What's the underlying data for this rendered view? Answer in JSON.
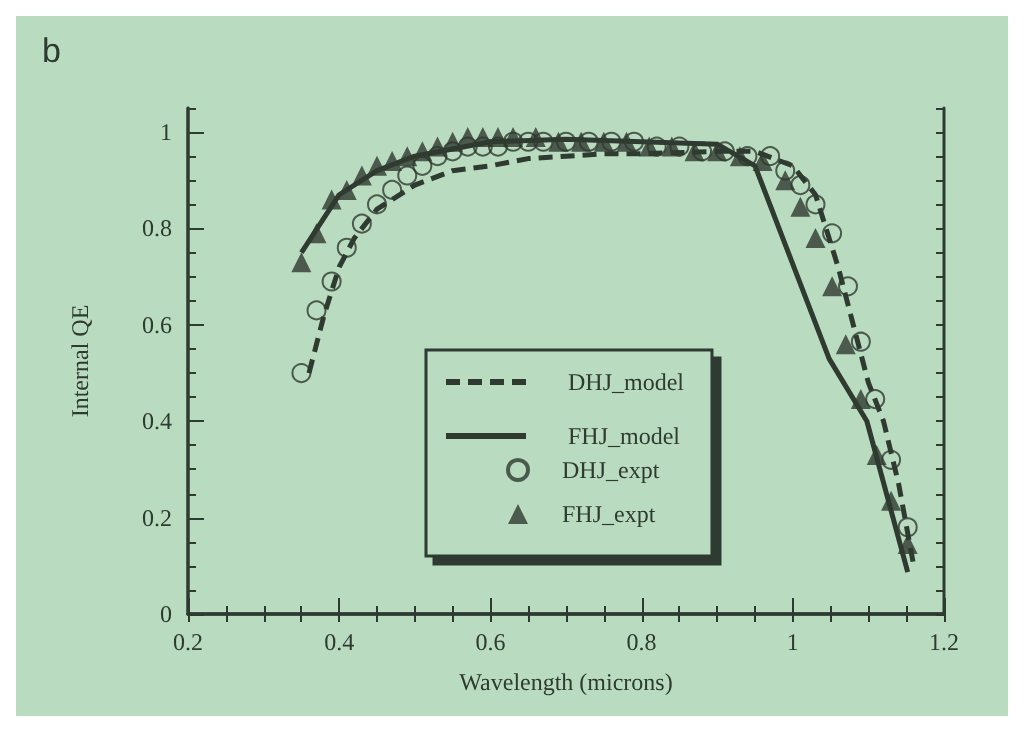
{
  "chart_data": {
    "type": "line",
    "title": "b",
    "xlabel": "Wavelength (microns)",
    "ylabel": "Internal QE",
    "xlim": [
      0.2,
      1.2
    ],
    "xticks": [
      0.2,
      0.4,
      0.6,
      0.8,
      1,
      1.2
    ],
    "ylim": [
      0,
      1.05
    ],
    "yticks": [
      0,
      0.2,
      0.4,
      0.6,
      0.8,
      1
    ],
    "grid": false,
    "legend": "bottom",
    "series": [
      {
        "name": "DHJ_model",
        "color": "#2f3a30",
        "line_style": "dashed",
        "marker": "none",
        "x": [
          0.36,
          0.38,
          0.4,
          0.42,
          0.45,
          0.5,
          0.55,
          0.6,
          0.65,
          0.7,
          0.75,
          0.8,
          0.9,
          0.95,
          1.0,
          1.03,
          1.06,
          1.08,
          1.1,
          1.12,
          1.14,
          1.16
        ],
        "values": [
          0.5,
          0.62,
          0.72,
          0.78,
          0.84,
          0.89,
          0.92,
          0.93,
          0.945,
          0.95,
          0.955,
          0.955,
          0.96,
          0.96,
          0.93,
          0.87,
          0.72,
          0.6,
          0.48,
          0.4,
          0.27,
          0.1
        ]
      },
      {
        "name": "FHJ_model",
        "color": "#2f3a30",
        "line_style": "solid",
        "marker": "none",
        "x": [
          0.35,
          0.4,
          0.45,
          0.5,
          0.6,
          0.7,
          0.8,
          0.9,
          0.95,
          1.048,
          1.098,
          1.152
        ],
        "values": [
          0.75,
          0.87,
          0.92,
          0.95,
          0.98,
          0.985,
          0.98,
          0.975,
          0.93,
          0.53,
          0.4,
          0.087
        ]
      },
      {
        "name": "DHJ_expt",
        "color": "#2f3a30",
        "type": "scatter",
        "marker": "circle",
        "x": [
          0.35,
          0.37,
          0.39,
          0.41,
          0.43,
          0.45,
          0.47,
          0.49,
          0.51,
          0.53,
          0.55,
          0.57,
          0.59,
          0.61,
          0.63,
          0.65,
          0.67,
          0.7,
          0.73,
          0.76,
          0.79,
          0.82,
          0.85,
          0.88,
          0.91,
          0.94,
          0.97,
          0.99,
          1.01,
          1.03,
          1.052,
          1.073,
          1.09,
          1.109,
          1.13,
          1.152
        ],
        "values": [
          0.5,
          0.63,
          0.69,
          0.76,
          0.81,
          0.85,
          0.88,
          0.91,
          0.93,
          0.95,
          0.96,
          0.97,
          0.97,
          0.97,
          0.98,
          0.98,
          0.98,
          0.98,
          0.98,
          0.98,
          0.98,
          0.97,
          0.97,
          0.96,
          0.96,
          0.95,
          0.95,
          0.92,
          0.89,
          0.85,
          0.79,
          0.68,
          0.565,
          0.446,
          0.32,
          0.18
        ]
      },
      {
        "name": "FHJ_expt",
        "color": "#2f3a30",
        "type": "scatter",
        "marker": "triangle",
        "x": [
          0.35,
          0.37,
          0.39,
          0.41,
          0.43,
          0.45,
          0.47,
          0.49,
          0.51,
          0.53,
          0.55,
          0.57,
          0.59,
          0.61,
          0.63,
          0.66,
          0.69,
          0.72,
          0.75,
          0.78,
          0.81,
          0.84,
          0.87,
          0.9,
          0.93,
          0.96,
          0.99,
          1.01,
          1.03,
          1.052,
          1.07,
          1.09,
          1.111,
          1.13,
          1.152
        ],
        "values": [
          0.73,
          0.79,
          0.86,
          0.88,
          0.91,
          0.93,
          0.94,
          0.95,
          0.96,
          0.97,
          0.98,
          0.99,
          0.99,
          0.99,
          0.99,
          0.99,
          0.98,
          0.98,
          0.98,
          0.98,
          0.97,
          0.97,
          0.96,
          0.96,
          0.95,
          0.94,
          0.9,
          0.845,
          0.78,
          0.68,
          0.56,
          0.446,
          0.33,
          0.235,
          0.145
        ]
      }
    ]
  }
}
